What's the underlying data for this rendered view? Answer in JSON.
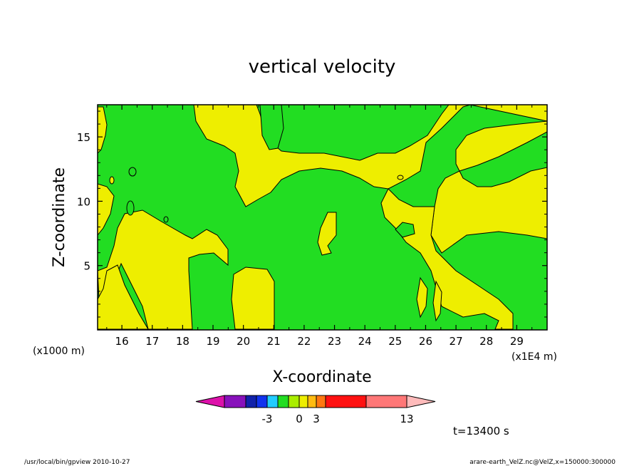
{
  "chart_data": {
    "type": "heatmap",
    "title": "vertical velocity",
    "xlabel": "X-coordinate",
    "ylabel": "Z-coordinate",
    "x_unit_note_left": "(x1000 m)",
    "x_unit_note_right": "(x1E4 m)",
    "xlim": [
      15.2,
      30.0
    ],
    "ylim": [
      0,
      17.5
    ],
    "x_ticks": [
      16,
      17,
      18,
      19,
      20,
      21,
      22,
      23,
      24,
      25,
      26,
      27,
      28,
      29
    ],
    "y_ticks": [
      5,
      10,
      15
    ],
    "colorbar": {
      "ticks": [
        "-3",
        "0",
        "3",
        "13"
      ],
      "colors": [
        "#dd11aa",
        "#8811bb",
        "#1122aa",
        "#1133ee",
        "#22ccff",
        "#22dd22",
        "#aaee00",
        "#eeee00",
        "#ffbb11",
        "#ff7711",
        "#ff1111",
        "#ff7777",
        "#ffbbbb"
      ]
    },
    "fields": {
      "dominant_colors": [
        "#22dd22",
        "#eeee00"
      ]
    },
    "time_label": "t=13400 s",
    "footer_left": "/usr/local/bin/gpview   2010-10-27",
    "footer_right": "arare-earth_VelZ.nc@VelZ,x=150000:300000"
  }
}
